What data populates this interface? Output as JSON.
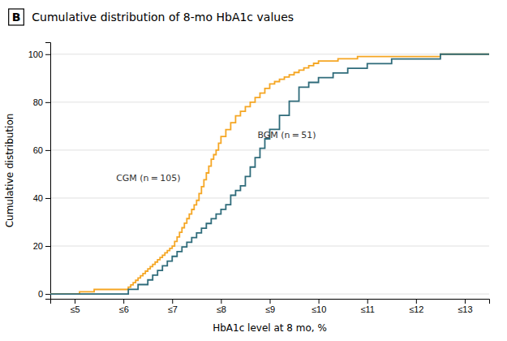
{
  "chart_data": {
    "type": "step",
    "panel_label": "B",
    "title": "Cumulative distribution of 8-mo HbA1c values",
    "x_label": "HbA1c level at 8 mo, %",
    "y_label": "Cumulative distribution",
    "xlim": [
      4.5,
      13.5
    ],
    "ylim": [
      -2,
      105
    ],
    "xticks": [
      {
        "value": 5,
        "label": "≤5"
      },
      {
        "value": 6,
        "label": "≤6"
      },
      {
        "value": 7,
        "label": "≤7"
      },
      {
        "value": 8,
        "label": "≤8"
      },
      {
        "value": 9,
        "label": "≤9"
      },
      {
        "value": 10,
        "label": "≤10"
      },
      {
        "value": 11,
        "label": "≤11"
      },
      {
        "value": 12,
        "label": "≤12"
      },
      {
        "value": 13,
        "label": "≤13"
      }
    ],
    "yticks": [
      0,
      20,
      40,
      60,
      80,
      100
    ],
    "grid": true,
    "annotations": [
      {
        "text": "CGM (n = 105)",
        "x": 5.85,
        "y": 47
      },
      {
        "text": "BGM (n = 51)",
        "x": 8.75,
        "y": 65
      }
    ],
    "series": [
      {
        "color": "#F5A623",
        "x": [
          4.5,
          5.0,
          5.1,
          5.2,
          5.4,
          5.5,
          5.6,
          5.7,
          5.8,
          5.9,
          6.0,
          6.1,
          6.15,
          6.2,
          6.25,
          6.3,
          6.35,
          6.4,
          6.45,
          6.5,
          6.55,
          6.6,
          6.65,
          6.7,
          6.75,
          6.8,
          6.85,
          6.9,
          6.95,
          7.0,
          7.05,
          7.1,
          7.15,
          7.2,
          7.25,
          7.3,
          7.35,
          7.4,
          7.45,
          7.5,
          7.55,
          7.6,
          7.65,
          7.7,
          7.75,
          7.8,
          7.85,
          7.9,
          7.95,
          8.0,
          8.1,
          8.2,
          8.3,
          8.4,
          8.5,
          8.6,
          8.7,
          8.8,
          8.9,
          9.0,
          9.1,
          9.2,
          9.3,
          9.4,
          9.5,
          9.6,
          9.7,
          9.8,
          9.9,
          10.0,
          10.2,
          10.4,
          10.6,
          10.8,
          11.0,
          11.5,
          12.0,
          12.5,
          13.0,
          13.5
        ],
        "values": [
          0,
          0,
          0.95,
          0.95,
          1.9,
          1.9,
          1.9,
          1.9,
          1.9,
          1.9,
          1.9,
          2.86,
          3.81,
          4.76,
          5.71,
          6.67,
          7.62,
          8.57,
          9.52,
          10.48,
          11.43,
          12.38,
          13.33,
          14.29,
          15.24,
          16.19,
          17.14,
          18.1,
          19.05,
          20.0,
          21.9,
          23.81,
          25.71,
          27.62,
          29.52,
          31.43,
          33.33,
          35.24,
          37.14,
          39.05,
          41.9,
          44.76,
          47.62,
          50.48,
          53.33,
          56.19,
          58.1,
          60.0,
          62.86,
          65.71,
          68.57,
          71.43,
          74.29,
          76.19,
          78.1,
          80.0,
          81.9,
          83.81,
          85.71,
          87.62,
          88.57,
          89.52,
          90.48,
          91.43,
          92.38,
          93.33,
          94.29,
          95.24,
          96.19,
          97.14,
          97.14,
          98.1,
          98.1,
          99.05,
          99.05,
          99.05,
          99.05,
          100.0,
          100.0,
          100.0
        ]
      },
      {
        "color": "#2E6B7A",
        "x": [
          4.5,
          5.9,
          6.0,
          6.1,
          6.2,
          6.3,
          6.4,
          6.5,
          6.6,
          6.7,
          6.8,
          6.9,
          7.0,
          7.1,
          7.2,
          7.3,
          7.4,
          7.5,
          7.6,
          7.7,
          7.8,
          7.9,
          8.0,
          8.1,
          8.2,
          8.3,
          8.4,
          8.5,
          8.6,
          8.7,
          8.8,
          8.9,
          9.0,
          9.2,
          9.4,
          9.6,
          9.8,
          10.0,
          10.3,
          10.6,
          11.0,
          11.5,
          12.0,
          12.5,
          13.0,
          13.5
        ],
        "values": [
          0,
          0,
          0,
          1.96,
          1.96,
          3.92,
          3.92,
          5.88,
          7.84,
          9.8,
          11.76,
          13.73,
          15.69,
          17.65,
          19.61,
          21.57,
          23.53,
          25.49,
          27.45,
          29.41,
          31.37,
          33.33,
          35.29,
          37.25,
          41.18,
          43.14,
          45.1,
          49.02,
          52.94,
          56.86,
          60.78,
          64.71,
          68.63,
          74.51,
          80.39,
          86.27,
          88.24,
          90.2,
          92.16,
          94.12,
          96.08,
          98.04,
          98.04,
          100.0,
          100.0,
          100.0
        ]
      }
    ]
  }
}
